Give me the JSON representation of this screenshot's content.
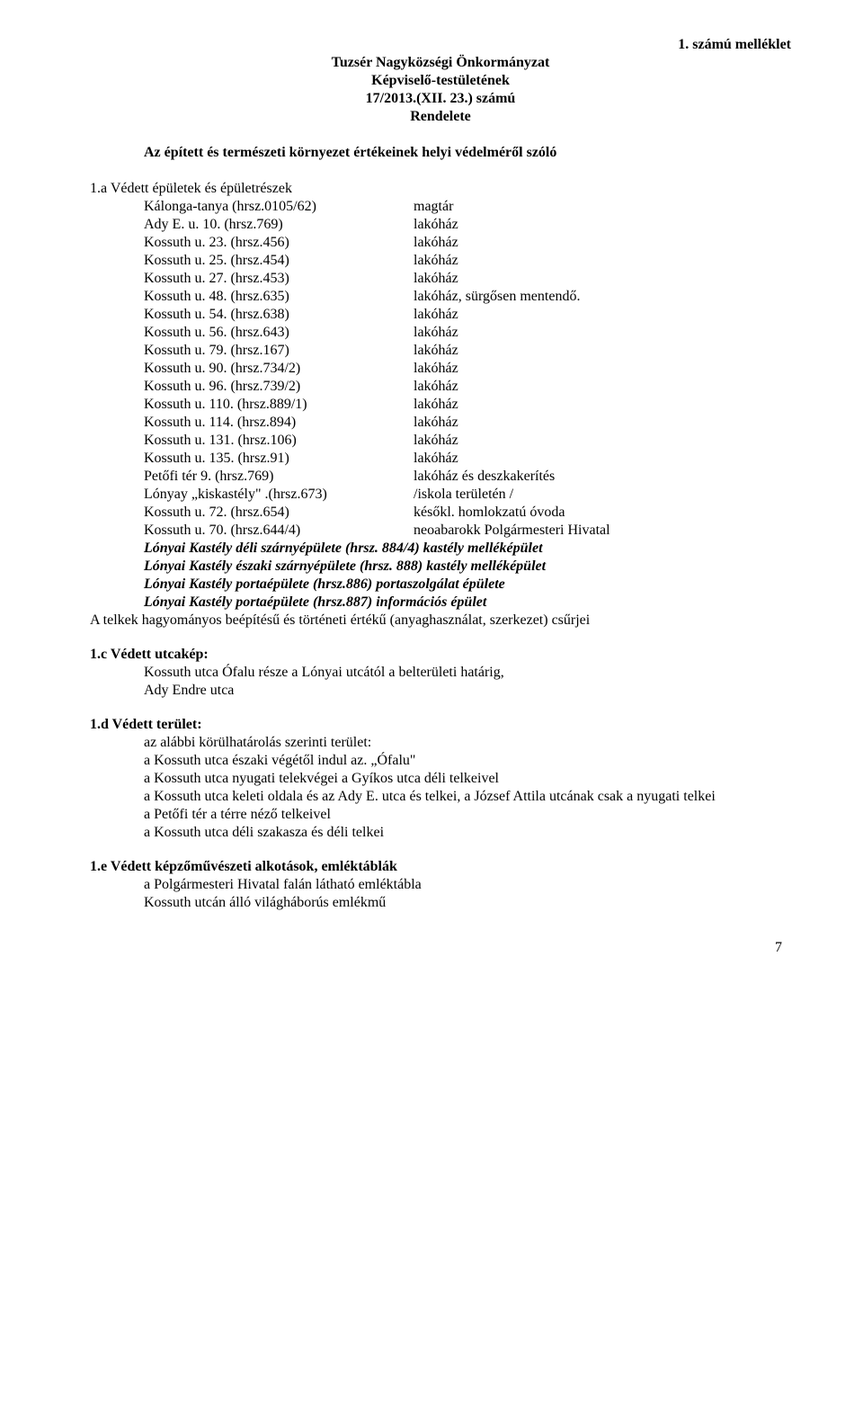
{
  "header": {
    "annex": "1.  számú melléklet",
    "org": "Tuzsér Nagyközségi Önkormányzat",
    "body": "Képviselő-testületének",
    "number": "17/2013.(XII. 23.)  számú",
    "type": "Rendelete"
  },
  "subtitle": "Az épített és természeti környezet értékeinek helyi védelméről szóló",
  "section1a_title": "1.a Védett épületek és épületrészek",
  "rows": [
    {
      "l": "Kálonga-tanya  (hrsz.0105/62)",
      "r": "magtár"
    },
    {
      "l": "Ady E.  u.     10.  (hrsz.769)",
      "r": "lakóház"
    },
    {
      "l": "Kossuth u.  23. (hrsz.456)",
      "r": "lakóház"
    },
    {
      "l": "Kossuth u.  25. (hrsz.454)",
      "r": "lakóház"
    },
    {
      "l": "Kossuth u.  27. (hrsz.453)",
      "r": "lakóház"
    },
    {
      "l": "Kossuth u.  48. (hrsz.635)",
      "r": "lakóház, sürgősen mentendő."
    },
    {
      "l": "Kossuth u.  54. (hrsz.638)",
      "r": "lakóház"
    },
    {
      "l": "Kossuth u.  56. (hrsz.643)",
      "r": "lakóház"
    },
    {
      "l": "Kossuth u.  79. (hrsz.167)",
      "r": "lakóház"
    },
    {
      "l": "Kossuth u.  90. (hrsz.734/2)",
      "r": "lakóház"
    },
    {
      "l": "Kossuth u.  96. (hrsz.739/2)",
      "r": "lakóház"
    },
    {
      "l": "Kossuth u. 110. (hrsz.889/1)",
      "r": "lakóház"
    },
    {
      "l": "Kossuth u. 114. (hrsz.894)",
      "r": "lakóház"
    },
    {
      "l": "Kossuth u. 131. (hrsz.106)",
      "r": "lakóház"
    },
    {
      "l": "Kossuth u. 135. (hrsz.91)",
      "r": "lakóház"
    },
    {
      "l": "Petőfi tér        9. (hrsz.769)",
      "r": "lakóház és deszkakerítés"
    },
    {
      "l": "Lónyay „kiskastély\" .(hrsz.673)",
      "r": "/iskola területén /"
    },
    {
      "l": "Kossuth u.   72. (hrsz.654)",
      "r": "későkl. homlokzatú óvoda"
    },
    {
      "l": "Kossuth u.   70. (hrsz.644/4)",
      "r": "neoabarokk Polgármesteri Hivatal"
    }
  ],
  "bold_italic": [
    "Lónyai Kastély déli szárnyépülete (hrsz. 884/4) kastély melléképület",
    "Lónyai Kastély északi szárnyépülete (hrsz. 888) kastély melléképület",
    "Lónyai Kastély portaépülete (hrsz.886) portaszolgálat épülete",
    "Lónyai Kastély portaépülete (hrsz.887) információs épület"
  ],
  "tail_line": "A telkek hagyományos beépítésű és történeti értékű (anyaghasználat, szerkezet) csűrjei",
  "section1c_title": "1.c Védett utcakép:",
  "section1c_lines": [
    "Kossuth utca  Ófalu része a Lónyai utcától a belterületi határig,",
    "Ady Endre utca"
  ],
  "section1d_title": "1.d Védett terület:",
  "section1d_lines": [
    "az alábbi körülhatárolás szerinti terület:",
    "a Kossuth utca északi végétől indul az. „Ófalu\"",
    "a Kossuth utca nyugati telekvégei a Gyíkos utca déli telkeivel",
    "a Kossuth utca keleti oldala és az Ady E. utca és telkei, a József Attila utcának csak a nyugati telkei",
    "a Petőfi tér  a térre néző telkeivel",
    "a Kossuth utca déli szakasza és déli telkei"
  ],
  "section1e_title": "1.e Védett képzőművészeti alkotások, emléktáblák",
  "section1e_lines": [
    "a Polgármesteri Hivatal falán látható emléktábla",
    "Kossuth utcán álló világháborús emlékmű"
  ],
  "page_number": "7"
}
